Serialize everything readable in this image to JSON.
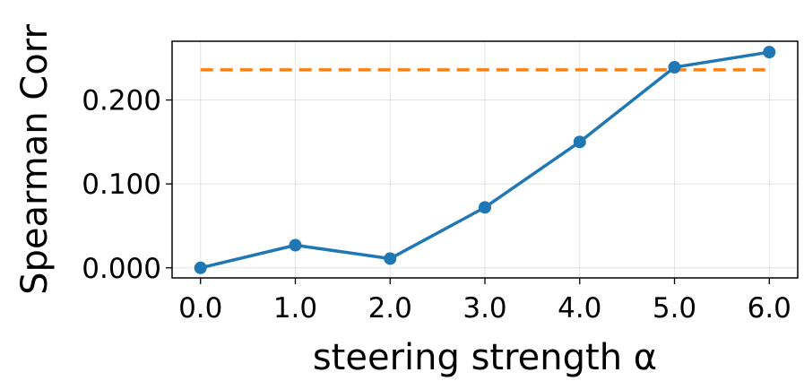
{
  "chart_data": {
    "type": "line",
    "title": "",
    "xlabel": "steering strength α",
    "ylabel": "Spearman Corr",
    "xlim": [
      -0.3,
      6.3
    ],
    "ylim": [
      -0.012,
      0.27
    ],
    "grid": true,
    "x_ticks": [
      0,
      1,
      2,
      3,
      4,
      5,
      6
    ],
    "x_tick_labels": [
      "0.0",
      "1.0",
      "2.0",
      "3.0",
      "4.0",
      "5.0",
      "6.0"
    ],
    "y_ticks": [
      0,
      0.1,
      0.2
    ],
    "y_tick_labels": [
      "0.000",
      "0.100",
      "0.200"
    ],
    "series": [
      {
        "x": [
          0,
          1,
          2,
          3,
          4,
          5,
          6
        ],
        "values": [
          0.0,
          0.027,
          0.011,
          0.072,
          0.15,
          0.239,
          0.257
        ],
        "color": "#1f77b4",
        "marker": "circle"
      }
    ],
    "reference_lines": [
      {
        "y": 0.236,
        "x_start": 0,
        "x_end": 6,
        "color": "#ff7f0e",
        "style": "dashed"
      }
    ]
  }
}
